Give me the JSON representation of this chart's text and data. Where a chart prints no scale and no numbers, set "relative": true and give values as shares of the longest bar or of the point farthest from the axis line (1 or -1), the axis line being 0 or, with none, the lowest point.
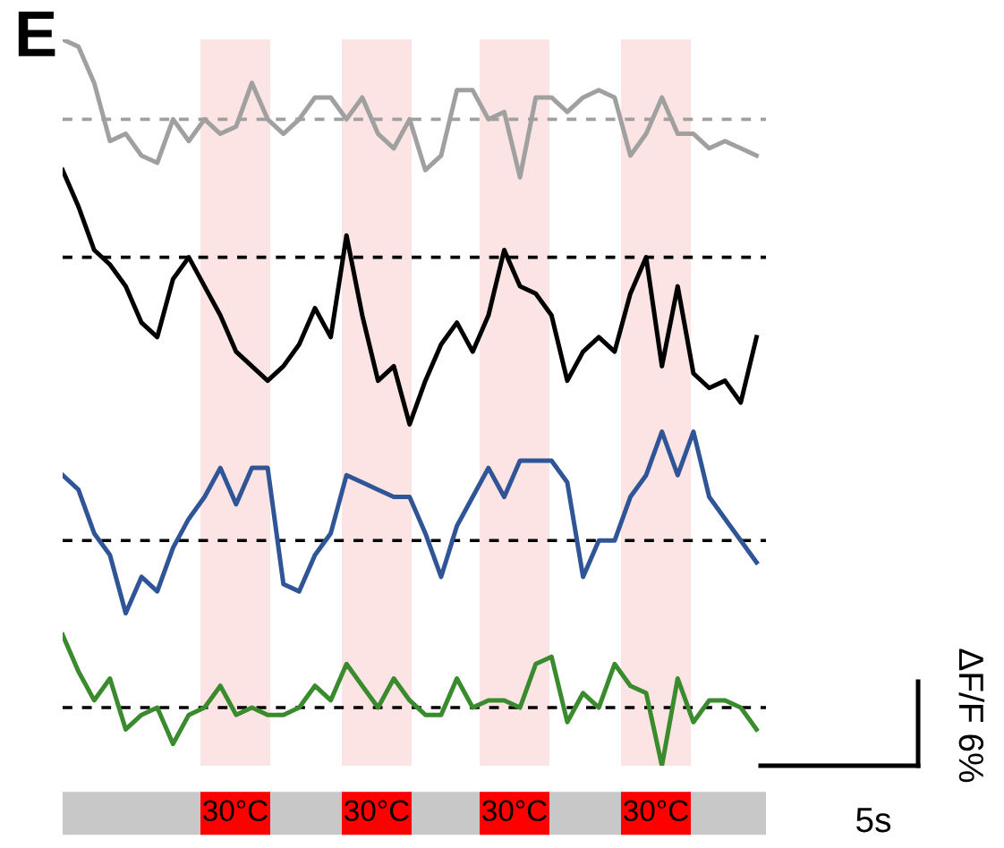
{
  "chart_data": {
    "type": "line",
    "title": "E",
    "relative": true,
    "categories": [
      null,
      null,
      null,
      null,
      null,
      null,
      null,
      null,
      null,
      null,
      null,
      null,
      null,
      null,
      null,
      null,
      null,
      null,
      null,
      null,
      null,
      null,
      null,
      null,
      null,
      null,
      null,
      null,
      null,
      null,
      null,
      null,
      null,
      null,
      null,
      null,
      null,
      null,
      null,
      null,
      null,
      null,
      null,
      null,
      null
    ],
    "series": [
      {
        "color": "#a0a0a0",
        "values": [
          1,
          0.99,
          0.94,
          0.86,
          0.87,
          0.84,
          0.83,
          0.89,
          0.86,
          0.89,
          0.87,
          0.88,
          0.94,
          0.89,
          0.87,
          0.89,
          0.92,
          0.92,
          0.89,
          0.92,
          0.87,
          0.85,
          0.89,
          0.82,
          0.84,
          0.93,
          0.93,
          0.89,
          0.9,
          0.81,
          0.92,
          0.92,
          0.9,
          0.92,
          0.93,
          0.92,
          0.84,
          0.87,
          0.92,
          0.87,
          0.87,
          0.85,
          0.86,
          0.85,
          0.84
        ]
      },
      {
        "color": "#000000",
        "values": [
          0.82,
          0.77,
          0.71,
          0.69,
          0.66,
          0.61,
          0.59,
          0.67,
          0.7,
          0.66,
          0.62,
          0.57,
          0.55,
          0.53,
          0.55,
          0.58,
          0.63,
          0.59,
          0.73,
          0.62,
          0.53,
          0.55,
          0.47,
          0.53,
          0.58,
          0.61,
          0.57,
          0.62,
          0.71,
          0.66,
          0.65,
          0.62,
          0.53,
          0.57,
          0.59,
          0.57,
          0.65,
          0.7,
          0.55,
          0.66,
          0.54,
          0.52,
          0.53,
          0.5,
          0.59
        ]
      },
      {
        "color": "#2f5597",
        "values": [
          0.4,
          0.38,
          0.32,
          0.29,
          0.21,
          0.26,
          0.24,
          0.3,
          0.34,
          0.37,
          0.41,
          0.36,
          0.41,
          0.41,
          0.25,
          0.24,
          0.29,
          0.32,
          0.4,
          0.39,
          0.38,
          0.37,
          0.37,
          0.32,
          0.26,
          0.33,
          0.37,
          0.41,
          0.37,
          0.42,
          0.42,
          0.42,
          0.39,
          0.26,
          0.31,
          0.31,
          0.37,
          0.4,
          0.46,
          0.4,
          0.46,
          0.37,
          0.34,
          0.31,
          0.28
        ]
      },
      {
        "color": "#3a8a2e",
        "values": [
          0.18,
          0.13,
          0.09,
          0.12,
          0.05,
          0.07,
          0.08,
          0.03,
          0.07,
          0.08,
          0.11,
          0.07,
          0.08,
          0.07,
          0.07,
          0.08,
          0.11,
          0.09,
          0.14,
          0.11,
          0.08,
          0.12,
          0.09,
          0.07,
          0.07,
          0.12,
          0.08,
          0.09,
          0.09,
          0.08,
          0.14,
          0.15,
          0.06,
          0.1,
          0.08,
          0.14,
          0.11,
          0.1,
          0,
          0.12,
          0.06,
          0.09,
          0.09,
          0.08,
          0.05
        ]
      }
    ],
    "ref_lines": [
      {
        "axis": "y",
        "value": 0.89,
        "color": "#a0a0a0",
        "line_style": "dashed"
      },
      {
        "axis": "y",
        "value": 0.7,
        "color": "#000000",
        "line_style": "dashed"
      },
      {
        "axis": "y",
        "value": 0.31,
        "color": "#000000",
        "line_style": "dashed"
      },
      {
        "axis": "y",
        "value": 0.08,
        "color": "#000000",
        "line_style": "dashed"
      }
    ],
    "annotations": [
      "ΔF/F 6%",
      "5s",
      "30°C",
      "30°C",
      "30°C",
      "30°C"
    ]
  }
}
